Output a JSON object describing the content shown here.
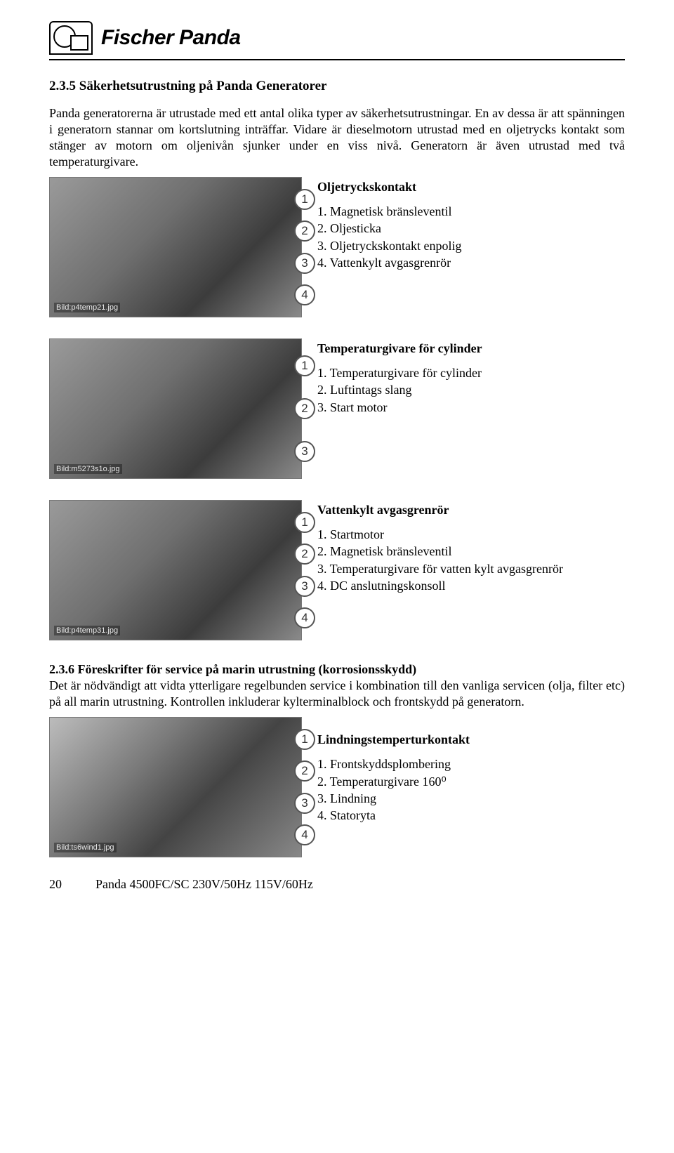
{
  "brand": "Fischer Panda",
  "section_1": {
    "number": "2.3.5",
    "title": "Säkerhetsutrustning på Panda Generatorer",
    "body": "Panda generatorerna är utrustade med ett antal olika typer av säkerhetsutrustningar. En av dessa är att spänningen i generatorn stannar om kortslutning inträffar. Vidare är dieselmotorn utrustad med en oljetrycks kontakt som stänger av motorn om oljenivån sjunker under en viss nivå. Generatorn är även utrustad med två temperaturgivare."
  },
  "fig1": {
    "caption": "Bild:p4temp21.jpg",
    "title": "Oljetryckskontakt",
    "items": [
      "Magnetisk bränsleventil",
      "Oljesticka",
      "Oljetryckskontakt enpolig",
      "Vattenkylt avgasgrenrör"
    ]
  },
  "fig2": {
    "caption": "Bild:m5273s1o.jpg",
    "title": "Temperaturgivare för cylinder",
    "items": [
      "Temperaturgivare för cylinder",
      "Luftintags slang",
      "Start motor"
    ]
  },
  "fig3": {
    "caption": "Bild:p4temp31.jpg",
    "title": "Vattenkylt avgasgrenrör",
    "items": [
      "Startmotor",
      "Magnetisk bränsleventil",
      "Temperaturgivare för vatten kylt avgasgrenrör",
      "DC anslutningskonsoll"
    ]
  },
  "section_2": {
    "number": "2.3.6",
    "title": "Föreskrifter för service på marin utrustning (korrosionsskydd)",
    "body": "Det är nödvändigt att vidta ytterligare regelbunden service i kombination till den vanliga servicen (olja, filter etc) på all marin utrustning. Kontrollen inkluderar kylterminalblock och frontskydd på generatorn."
  },
  "fig4": {
    "caption": "Bild:ts6wind1.jpg",
    "title": "Lindningstemperturkontakt",
    "items": [
      "Frontskyddsplombering",
      "Temperaturgivare 160⁰",
      "Lindning",
      "Statoryta"
    ]
  },
  "footer": {
    "page": "20",
    "doc": "Panda 4500FC/SC  230V/50Hz  115V/60Hz"
  }
}
